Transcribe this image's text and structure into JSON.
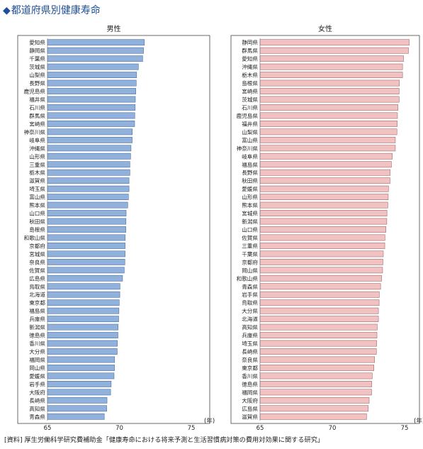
{
  "page": {
    "title_mark": "◆",
    "title": "都道府県別健康寿命",
    "source": "[資料] 厚生労働科学研究費補助金「健康寿命における将来予測と生活習慣病対策の費用対効果に関する研究」"
  },
  "colors": {
    "male_bar": "#8fb1dc",
    "male_bar_stroke": "#3a5f94",
    "female_bar": "#f2c2c2",
    "female_bar_stroke": "#8e5656",
    "frame": "#444444",
    "title": "#1f4e9a"
  },
  "chart_data": [
    {
      "type": "bar",
      "orientation": "horizontal",
      "title": "男性",
      "xlabel": "",
      "x_unit_label": "(年)",
      "xlim": [
        65,
        75
      ],
      "xticks": [
        65,
        70,
        75
      ],
      "grid": false,
      "categories": [
        "愛知県",
        "静岡県",
        "千葉県",
        "茨城県",
        "山梨県",
        "長野県",
        "鹿児島県",
        "福井県",
        "石川県",
        "群馬県",
        "宮崎県",
        "神奈川県",
        "岐阜県",
        "沖縄県",
        "山形県",
        "三重県",
        "栃木県",
        "滋賀県",
        "埼玉県",
        "富山県",
        "熊本県",
        "山口県",
        "秋田県",
        "島根県",
        "和歌山県",
        "京都府",
        "宮城県",
        "奈良県",
        "佐賀県",
        "広島県",
        "鳥取県",
        "北海道",
        "東京都",
        "福島県",
        "兵庫県",
        "新潟県",
        "徳島県",
        "香川県",
        "大分県",
        "福岡県",
        "岡山県",
        "愛媛県",
        "岩手県",
        "大阪府",
        "長崎県",
        "高知県",
        "青森県"
      ],
      "values": [
        71.74,
        71.68,
        71.62,
        71.32,
        71.2,
        71.17,
        71.14,
        71.11,
        71.1,
        71.07,
        71.06,
        70.9,
        70.89,
        70.81,
        70.78,
        70.73,
        70.73,
        70.67,
        70.67,
        70.63,
        70.58,
        70.47,
        70.46,
        70.45,
        70.41,
        70.4,
        70.4,
        70.38,
        70.34,
        70.22,
        70.04,
        70.03,
        69.99,
        69.97,
        69.95,
        69.91,
        69.9,
        69.86,
        69.85,
        69.67,
        69.66,
        69.63,
        69.43,
        69.39,
        69.14,
        69.12,
        68.95
      ]
    },
    {
      "type": "bar",
      "orientation": "horizontal",
      "title": "女性",
      "xlabel": "",
      "x_unit_label": "(年)",
      "xlim": [
        65,
        75
      ],
      "xticks": [
        65,
        70,
        75
      ],
      "grid": false,
      "categories": [
        "静岡県",
        "群馬県",
        "愛知県",
        "沖縄県",
        "栃木県",
        "島根県",
        "宮崎県",
        "茨城県",
        "石川県",
        "鹿児島県",
        "福井県",
        "山梨県",
        "富山県",
        "神奈川県",
        "岐阜県",
        "福島県",
        "長野県",
        "秋田県",
        "愛媛県",
        "山形県",
        "熊本県",
        "宮城県",
        "新潟県",
        "山口県",
        "佐賀県",
        "三重県",
        "千葉県",
        "京都府",
        "岡山県",
        "和歌山県",
        "青森県",
        "岩手県",
        "鳥取県",
        "大分県",
        "北海道",
        "高知県",
        "兵庫県",
        "埼玉県",
        "長崎県",
        "奈良県",
        "東京都",
        "香川県",
        "徳島県",
        "福岡県",
        "大阪府",
        "広島県",
        "滋賀県"
      ],
      "values": [
        75.32,
        75.27,
        74.93,
        74.86,
        74.86,
        74.64,
        74.62,
        74.62,
        74.54,
        74.51,
        74.49,
        74.47,
        74.36,
        74.36,
        74.15,
        74.09,
        74.0,
        73.99,
        73.89,
        73.87,
        73.84,
        73.78,
        73.77,
        73.71,
        73.64,
        73.63,
        73.53,
        73.5,
        73.48,
        73.41,
        73.34,
        73.25,
        73.24,
        73.19,
        73.19,
        73.11,
        73.09,
        73.07,
        73.05,
        72.93,
        72.88,
        72.76,
        72.73,
        72.72,
        72.55,
        72.49,
        72.37
      ]
    }
  ]
}
